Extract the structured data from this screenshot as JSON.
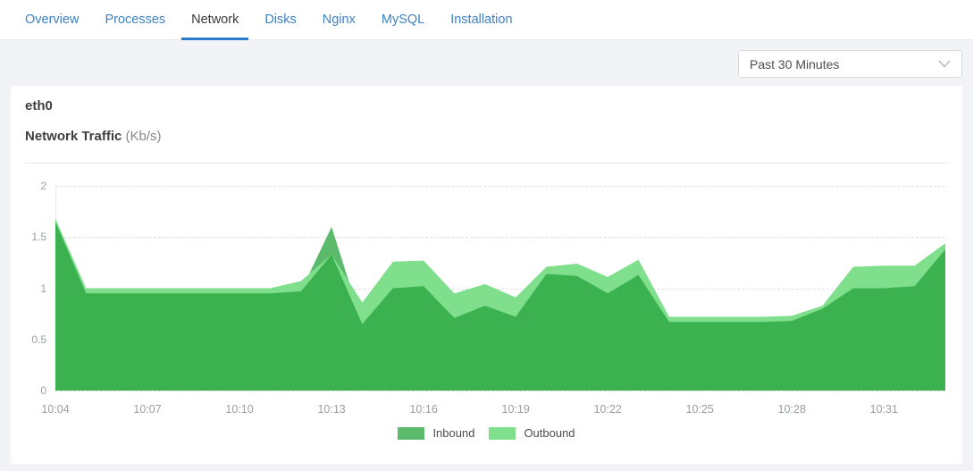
{
  "tabs": {
    "items": [
      {
        "label": "Overview",
        "active": false
      },
      {
        "label": "Processes",
        "active": false
      },
      {
        "label": "Network",
        "active": true
      },
      {
        "label": "Disks",
        "active": false
      },
      {
        "label": "Nginx",
        "active": false
      },
      {
        "label": "MySQL",
        "active": false
      },
      {
        "label": "Installation",
        "active": false
      }
    ]
  },
  "toolbar": {
    "time_range": {
      "value": "Past 30 Minutes"
    }
  },
  "card": {
    "interface_name": "eth0",
    "chart_title": "Network Traffic",
    "chart_unit": "(Kb/s)"
  },
  "colors": {
    "accent_blue": "#2d7ccb",
    "tab_link_blue": "#3d82c4",
    "inbound_green": "#5cba6c",
    "outbound_green": "#7fdf8d",
    "overlap_green": "#3bb24f",
    "page_background": "#f1f3f6"
  },
  "chart_data": {
    "type": "area",
    "title": "Network Traffic (Kb/s)",
    "ylabel": "Kb/s",
    "ylim": [
      0,
      2
    ],
    "y_ticks": [
      0,
      0.5,
      1,
      1.5,
      2
    ],
    "y_tick_labels": [
      "0",
      "0.5",
      "1",
      "1.5",
      "2"
    ],
    "grid": "horizontal-dashed",
    "legend_position": "bottom-center",
    "x": [
      "10:04",
      "10:05",
      "10:06",
      "10:07",
      "10:08",
      "10:09",
      "10:10",
      "10:11",
      "10:12",
      "10:13",
      "10:14",
      "10:15",
      "10:16",
      "10:17",
      "10:18",
      "10:19",
      "10:20",
      "10:21",
      "10:22",
      "10:23",
      "10:24",
      "10:25",
      "10:26",
      "10:27",
      "10:28",
      "10:29",
      "10:30",
      "10:31",
      "10:32",
      "10:33"
    ],
    "x_tick_every": 3,
    "x_tick_labels": [
      "10:04",
      "10:07",
      "10:10",
      "10:13",
      "10:16",
      "10:19",
      "10:22",
      "10:25",
      "10:28",
      "10:31"
    ],
    "series": [
      {
        "name": "Inbound",
        "color": "#5cba6c",
        "values": [
          1.65,
          0.95,
          0.95,
          0.95,
          0.95,
          0.95,
          0.95,
          0.95,
          0.97,
          1.6,
          0.65,
          1.0,
          1.02,
          0.71,
          0.83,
          0.72,
          1.14,
          1.12,
          0.95,
          1.13,
          0.67,
          0.67,
          0.67,
          0.67,
          0.68,
          0.8,
          1.0,
          1.0,
          1.02,
          1.38
        ]
      },
      {
        "name": "Outbound",
        "color": "#7fdf8d",
        "values": [
          1.68,
          1.0,
          1.0,
          1.0,
          1.0,
          1.0,
          1.0,
          1.0,
          1.07,
          1.33,
          0.86,
          1.26,
          1.27,
          0.95,
          1.04,
          0.91,
          1.21,
          1.24,
          1.11,
          1.28,
          0.72,
          0.72,
          0.72,
          0.72,
          0.73,
          0.83,
          1.21,
          1.22,
          1.22,
          1.44
        ]
      }
    ],
    "overlap_color": "#3bb24f"
  }
}
